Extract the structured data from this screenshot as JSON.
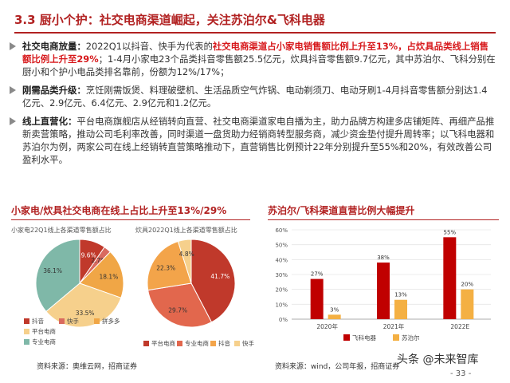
{
  "header": {
    "title": "3.3 厨小个护：社交电商渠道崛起，关注苏泊尔&飞科电器"
  },
  "bullets": [
    {
      "label": "社交电商放量：",
      "parts": [
        {
          "t": "2022Q1以抖音、快手为代表的",
          "s": "n"
        },
        {
          "t": "社交电商渠道占小家电销售额比例上升至13%，占炊具品类线上销售额比例上升至29%",
          "s": "h"
        },
        {
          "t": "；1-4月小家电23个品类抖音零售额25.5亿元，炊具抖音零售额9.7亿元，其中苏泊尔、飞科分别在厨小和个护小电品类排名靠前，份额为12%/17%；",
          "s": "n"
        }
      ]
    },
    {
      "label": "刚需品类升级：",
      "parts": [
        {
          "t": "烹饪刚需饭煲、料理破壁机、生活品质空气炸锅、电动剃须刀、电动牙刷1-4月抖音零售额分别达1.4亿元、2.9亿元、6.4亿元、2.9亿元和1.2亿元。",
          "s": "n"
        }
      ]
    },
    {
      "label": "线上直营化：",
      "parts": [
        {
          "t": "平台电商旗舰店从经销转向直营、社交电商渠道家电自播为主，助力品牌方构建多店铺矩阵、再细产品推新卖营策略，推动公司毛利率改善，同时渠道一盘货助力经销商转型服务商，减少资金垫付提升周转率；以飞科电器和苏泊尔为例，两家公司在线上经销转直营策略推动下，直营销售比例预计22年分别提升至55%和20%，有效改善公司盈利水平。",
          "s": "n"
        }
      ]
    }
  ],
  "left_panel": {
    "title": "小家电/炊具社交电商在线上占比上升至13%/29%",
    "pie1_subtitle": "小家电22Q1线上各渠道零售额占比",
    "pie2_subtitle": "炊具2022Q1线上各渠道零售额占比",
    "pie1_legend": [
      "抖音",
      "快手",
      "拼多多",
      "平台电商",
      "专业电商"
    ],
    "pie2_legend": [
      "平台电商",
      "专业电商",
      "抖音",
      "快手"
    ],
    "source": "资料来源：奥维云网，招商证券"
  },
  "right_panel": {
    "title": "苏泊尔/飞科渠道直营比例大幅提升",
    "source": "资料来源：wind，公司年报，招商证券"
  },
  "colors": {
    "accent": "#b22222",
    "highlight": "#d7191c",
    "fk": "#c00000",
    "sp": "#f4b043"
  },
  "chart_data": [
    {
      "type": "pie",
      "title": "小家电22Q1线上各渠道零售额占比",
      "categories": [
        "抖音",
        "快手",
        "拼多多",
        "平台电商",
        "专业电商"
      ],
      "values": [
        9.6,
        2.7,
        18.1,
        33.5,
        36.1
      ],
      "labels": [
        "9.6%",
        "2.7%",
        "18.1%",
        "33.5%",
        "36.1%"
      ],
      "colors": [
        "#c0392b",
        "#d96a5f",
        "#f0a646",
        "#f6d08c",
        "#7fb8a8"
      ]
    },
    {
      "type": "pie",
      "title": "炊具2022Q1线上各渠道零售额占比",
      "categories": [
        "平台电商",
        "专业电商",
        "抖音",
        "快手"
      ],
      "values": [
        41.7,
        29.7,
        22.3,
        4.8
      ],
      "labels": [
        "41.7%",
        "29.7%",
        "22.3%",
        "4.8%"
      ],
      "colors": [
        "#c0392b",
        "#e2674d",
        "#f3a44a",
        "#f6d08c"
      ]
    },
    {
      "type": "bar",
      "categories": [
        "2020年",
        "2021年",
        "2022E"
      ],
      "series": [
        {
          "name": "飞科电器",
          "values": [
            27,
            38,
            55
          ],
          "labels": [
            "27%",
            "38%",
            "55%"
          ]
        },
        {
          "name": "苏泊尔",
          "values": [
            3,
            13,
            20
          ],
          "labels": [
            "3%",
            "13%",
            "20%"
          ]
        }
      ],
      "ylim": [
        0,
        60
      ],
      "yticks": [
        "0%",
        "10%",
        "20%",
        "30%",
        "40%",
        "50%",
        "60%"
      ]
    }
  ],
  "footer": {
    "watermark": "头条 @未来智库",
    "page_number": "- 33 -"
  }
}
